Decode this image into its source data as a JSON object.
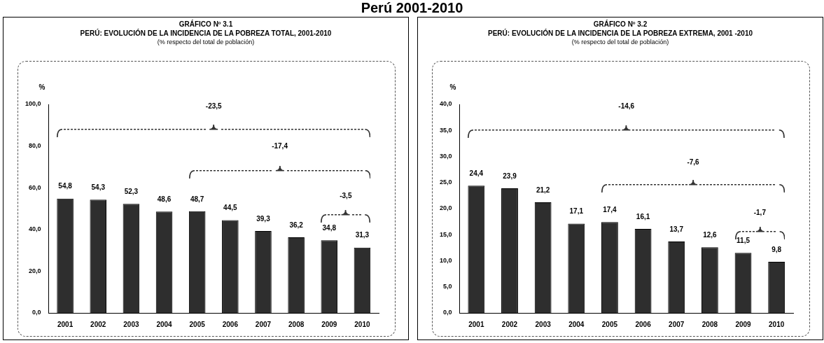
{
  "chart_data": [
    {
      "type": "bar",
      "title": "GRÁFICO Nº 3.1\nPERÚ: EVOLUCIÓN DE LA INCIDENCIA DE LA POBREZA TOTAL, 2001-2010",
      "subtitle": "(% respecto del total de población)",
      "ylabel": "%",
      "categories": [
        "2001",
        "2002",
        "2003",
        "2004",
        "2005",
        "2006",
        "2007",
        "2008",
        "2009",
        "2010"
      ],
      "values": [
        54.8,
        54.3,
        52.3,
        48.6,
        48.7,
        44.5,
        39.3,
        36.2,
        34.8,
        31.3
      ],
      "value_labels": [
        "54,8",
        "54,3",
        "52,3",
        "48,6",
        "48,7",
        "44,5",
        "39,3",
        "36,2",
        "34,8",
        "31,3"
      ],
      "color": "#2e2e2e",
      "ylim": [
        0,
        100
      ],
      "yticks": [
        {
          "value": 0,
          "label": "0,0"
        },
        {
          "value": 20,
          "label": "20,0"
        },
        {
          "value": 40,
          "label": "40,0"
        },
        {
          "value": 60,
          "label": "60,0"
        },
        {
          "value": 80,
          "label": "80,0"
        },
        {
          "value": 100,
          "label": "100,0"
        }
      ],
      "annotations": [
        "Perú 2001-2010",
        "-23,5",
        "-17,4",
        "-3,5"
      ],
      "grid": false,
      "legend": false
    },
    {
      "type": "bar",
      "title": "GRÁFICO Nº 3.2\nPERÚ: EVOLUCIÓN DE LA INCIDENCIA DE LA POBREZA EXTREMA, 2001 -2010",
      "subtitle": "(% respecto del total de población)",
      "ylabel": "%",
      "categories": [
        "2001",
        "2002",
        "2003",
        "2004",
        "2005",
        "2006",
        "2007",
        "2008",
        "2009",
        "2010"
      ],
      "values": [
        24.4,
        23.9,
        21.2,
        17.1,
        17.4,
        16.1,
        13.7,
        12.6,
        11.5,
        9.8
      ],
      "value_labels": [
        "24,4",
        "23,9",
        "21,2",
        "17,1",
        "17,4",
        "16,1",
        "13,7",
        "12,6",
        "11,5",
        "9,8"
      ],
      "color": "#2e2e2e",
      "ylim": [
        0,
        40
      ],
      "yticks": [
        {
          "value": 0,
          "label": "0,0"
        },
        {
          "value": 5,
          "label": "5,0"
        },
        {
          "value": 10,
          "label": "10,0"
        },
        {
          "value": 15,
          "label": "15,0"
        },
        {
          "value": 20,
          "label": "20,0"
        },
        {
          "value": 25,
          "label": "25,0"
        },
        {
          "value": 30,
          "label": "30,0"
        },
        {
          "value": 35,
          "label": "35,0"
        },
        {
          "value": 40,
          "label": "40,0"
        }
      ],
      "annotations": [
        "-14,6",
        "-7,6",
        "-1,7"
      ],
      "grid": false,
      "legend": false
    }
  ]
}
